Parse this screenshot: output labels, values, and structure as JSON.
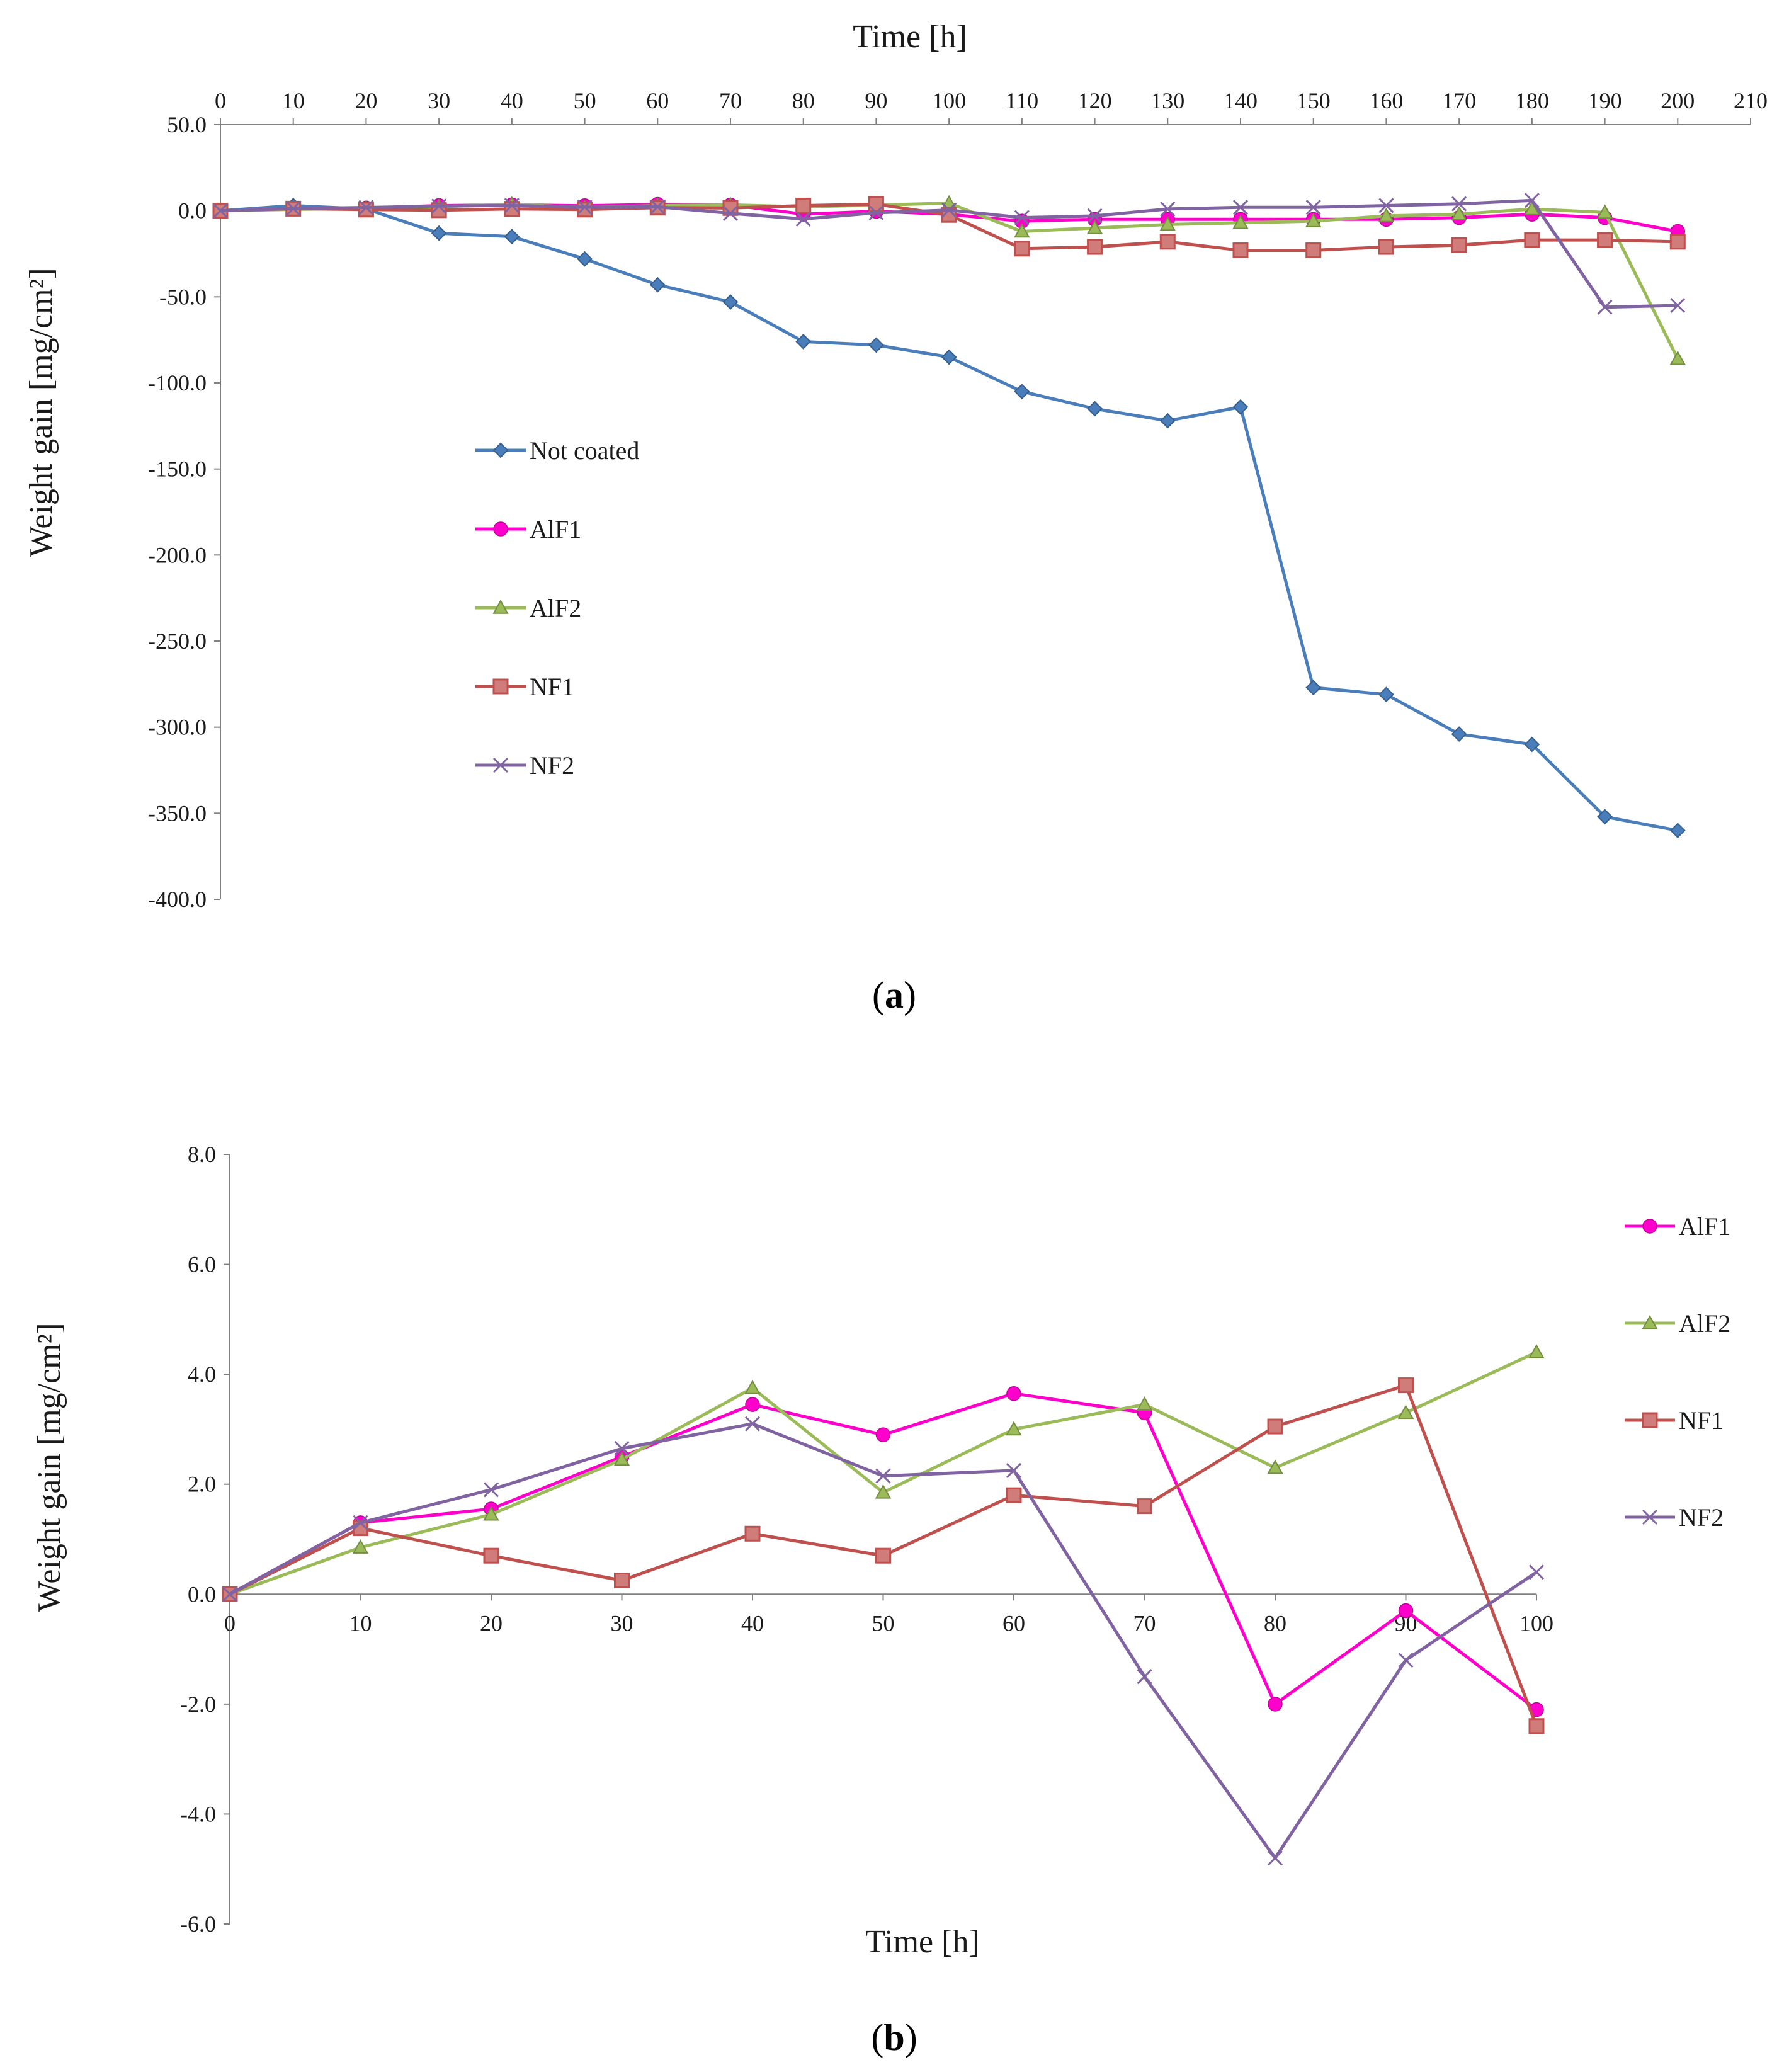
{
  "chart_data": [
    {
      "type": "line",
      "panel_prefix": "(",
      "panel_letter": "a",
      "panel_suffix": ")",
      "xlabel": "Time [h]",
      "ylabel": "Weight gain [mg/cm²]",
      "xlim": [
        0,
        210
      ],
      "ylim": [
        -400,
        50
      ],
      "x_ticks": [
        "0",
        "10",
        "20",
        "30",
        "40",
        "50",
        "60",
        "70",
        "80",
        "90",
        "100",
        "110",
        "120",
        "130",
        "140",
        "150",
        "160",
        "170",
        "180",
        "190",
        "200",
        "210"
      ],
      "y_ticks": [
        "50.0",
        "0.0",
        "-50.0",
        "-100.0",
        "-150.0",
        "-200.0",
        "-250.0",
        "-300.0",
        "-350.0",
        "-400.0"
      ],
      "x_axis_position": "top",
      "legend_position": "center-left",
      "x": [
        0,
        10,
        20,
        30,
        40,
        50,
        60,
        70,
        80,
        90,
        100,
        110,
        120,
        130,
        140,
        150,
        160,
        170,
        180,
        190,
        200
      ],
      "series": [
        {
          "name": "Not coated",
          "color": "#4a7ebb",
          "marker": "diamond",
          "values": [
            0,
            3,
            1,
            -13,
            -15,
            -28,
            -43,
            -53,
            -76,
            -78,
            -85,
            -105,
            -115,
            -122,
            -114,
            -277,
            -281,
            -304,
            -310,
            -352,
            -360
          ]
        },
        {
          "name": "AlF1",
          "color": "#ff00cc",
          "marker": "circle",
          "values": [
            0,
            1.3,
            1.6,
            3,
            3.4,
            2.9,
            3.7,
            3.3,
            -2,
            -0.3,
            -2.1,
            -6,
            -5,
            -5,
            -5,
            -5,
            -5,
            -4,
            -2,
            -4,
            -12
          ]
        },
        {
          "name": "AlF2",
          "color": "#9bbb59",
          "marker": "triangle",
          "values": [
            0,
            0.8,
            1.4,
            2.4,
            3.7,
            1.9,
            3,
            3.4,
            2.3,
            3.3,
            4.4,
            -12,
            -10,
            -8,
            -7,
            -6,
            -3,
            -2,
            1,
            -1,
            -86
          ]
        },
        {
          "name": "NF1",
          "color": "#c0504d",
          "marker": "square",
          "values": [
            0,
            1.2,
            0.7,
            0.3,
            1.1,
            0.7,
            1.8,
            1.6,
            3,
            3.8,
            -2.4,
            -22,
            -21,
            -18,
            -23,
            -23,
            -21,
            -20,
            -17,
            -17,
            -18
          ]
        },
        {
          "name": "NF2",
          "color": "#8064a2",
          "marker": "x",
          "values": [
            0,
            1.3,
            1.9,
            2.7,
            3.1,
            2.1,
            2.3,
            -1.5,
            -4.8,
            -1.2,
            0.4,
            -4,
            -3,
            1,
            2,
            2,
            3,
            4,
            6,
            -56,
            -55
          ]
        }
      ]
    },
    {
      "type": "line",
      "panel_prefix": "(",
      "panel_letter": "b",
      "panel_suffix": ")",
      "xlabel": "Time [h]",
      "ylabel": "Weight gain [mg/cm²]",
      "xlim": [
        0,
        100
      ],
      "ylim": [
        -6,
        8
      ],
      "x_ticks": [
        "0",
        "10",
        "20",
        "30",
        "40",
        "50",
        "60",
        "70",
        "80",
        "90",
        "100"
      ],
      "y_ticks": [
        "8.0",
        "6.0",
        "4.0",
        "2.0",
        "0.0",
        "-2.0",
        "-4.0",
        "-6.0"
      ],
      "x_axis_position": "zero-line",
      "legend_position": "right",
      "x": [
        0,
        10,
        20,
        30,
        40,
        50,
        60,
        70,
        80,
        90,
        100
      ],
      "series": [
        {
          "name": "AlF1",
          "color": "#ff00cc",
          "marker": "circle",
          "values": [
            0,
            1.3,
            1.55,
            2.5,
            3.45,
            2.9,
            3.65,
            3.3,
            -2,
            -0.3,
            -2.1
          ]
        },
        {
          "name": "AlF2",
          "color": "#9bbb59",
          "marker": "triangle",
          "values": [
            0,
            0.85,
            1.45,
            2.45,
            3.75,
            1.85,
            3,
            3.45,
            2.3,
            3.3,
            4.4
          ]
        },
        {
          "name": "NF1",
          "color": "#c0504d",
          "marker": "square",
          "values": [
            0,
            1.2,
            0.7,
            0.25,
            1.1,
            0.7,
            1.8,
            1.6,
            3.05,
            3.8,
            -2.4
          ]
        },
        {
          "name": "NF2",
          "color": "#8064a2",
          "marker": "x",
          "values": [
            0,
            1.3,
            1.9,
            2.65,
            3.1,
            2.15,
            2.25,
            -1.5,
            -4.8,
            -1.2,
            0.4
          ]
        }
      ]
    }
  ]
}
